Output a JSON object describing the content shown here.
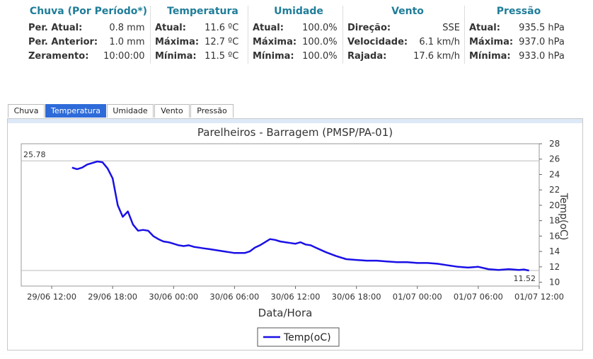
{
  "summary": [
    {
      "title": "Chuva (Por Período*)",
      "rows": [
        [
          "Per. Atual:",
          "0.8 mm"
        ],
        [
          "Per. Anterior:",
          "1.0 mm"
        ],
        [
          "Zeramento:",
          "10:00:00"
        ]
      ]
    },
    {
      "title": "Temperatura",
      "rows": [
        [
          "Atual:",
          "11.6 ºC"
        ],
        [
          "Máxima:",
          "12.7 ºC"
        ],
        [
          "Mínima:",
          "11.5 ºC"
        ]
      ]
    },
    {
      "title": "Umidade",
      "rows": [
        [
          "Atual:",
          "100.0%"
        ],
        [
          "Máxima:",
          "100.0%"
        ],
        [
          "Mínima:",
          "100.0%"
        ]
      ]
    },
    {
      "title": "Vento",
      "rows": [
        [
          "Direção:",
          "SSE"
        ],
        [
          "Velocidade:",
          "6.1 km/h"
        ],
        [
          "Rajada:",
          "17.6 km/h"
        ]
      ]
    },
    {
      "title": "Pressão",
      "rows": [
        [
          "Atual:",
          "935.5 hPa"
        ],
        [
          "Máxima:",
          "937.0 hPa"
        ],
        [
          "Mínima:",
          "933.0 hPa"
        ]
      ]
    }
  ],
  "tabs": [
    {
      "label": "Chuva",
      "active": false
    },
    {
      "label": "Temperatura",
      "active": true
    },
    {
      "label": "Umidade",
      "active": false
    },
    {
      "label": "Vento",
      "active": false
    },
    {
      "label": "Pressão",
      "active": false
    }
  ],
  "chart_data": {
    "type": "line",
    "title": "Parelheiros - Barragem (PMSP/PA-01)",
    "xlabel": "Data/Hora",
    "ylabel": "Temp(oC)",
    "ylim": [
      9.5,
      28
    ],
    "xlim": [
      -5,
      46
    ],
    "yticks": [
      10,
      12,
      14,
      16,
      18,
      20,
      22,
      24,
      26,
      28
    ],
    "xticks": [
      {
        "h": -2,
        "label": "29/06 12:00"
      },
      {
        "h": 4,
        "label": "29/06 18:00"
      },
      {
        "h": 10,
        "label": "30/06 00:00"
      },
      {
        "h": 16,
        "label": "30/06 06:00"
      },
      {
        "h": 22,
        "label": "30/06 12:00"
      },
      {
        "h": 28,
        "label": "30/06 18:00"
      },
      {
        "h": 34,
        "label": "01/07 00:00"
      },
      {
        "h": 40,
        "label": "01/07 06:00"
      },
      {
        "h": 46,
        "label": "01/07 12:00"
      }
    ],
    "max_marker": {
      "value": 25.78,
      "label": "25.78"
    },
    "min_marker": {
      "value": 11.52,
      "label": "11.52"
    },
    "legend_position": "bottom",
    "grid": false,
    "series": [
      {
        "name": "Temp(oC)",
        "color": "#1a10e6",
        "x": [
          0,
          0.5,
          1,
          1.5,
          2,
          2.5,
          3,
          3.5,
          4,
          4.5,
          5,
          5.5,
          6,
          6.5,
          7,
          7.5,
          8,
          8.5,
          9,
          9.5,
          10,
          10.5,
          11,
          11.5,
          12,
          12.5,
          13,
          13.5,
          14,
          14.5,
          15,
          15.5,
          16,
          16.5,
          17,
          17.5,
          18,
          18.5,
          19,
          19.5,
          20,
          20.5,
          21,
          21.5,
          22,
          22.5,
          23,
          23.5,
          24,
          25,
          26,
          27,
          28,
          29,
          30,
          31,
          32,
          33,
          34,
          35,
          36,
          37,
          38,
          39,
          40,
          41,
          42,
          43,
          44,
          44.5,
          45
        ],
        "y": [
          24.9,
          24.7,
          24.9,
          25.3,
          25.5,
          25.7,
          25.6,
          24.8,
          23.5,
          20,
          18.5,
          19.2,
          17.5,
          16.7,
          16.8,
          16.7,
          16,
          15.6,
          15.3,
          15.2,
          15,
          14.8,
          14.7,
          14.8,
          14.6,
          14.5,
          14.4,
          14.3,
          14.2,
          14.1,
          14,
          13.9,
          13.8,
          13.8,
          13.8,
          14,
          14.5,
          14.8,
          15.2,
          15.6,
          15.5,
          15.3,
          15.2,
          15.1,
          15,
          15.2,
          14.9,
          14.8,
          14.5,
          13.9,
          13.4,
          13,
          12.9,
          12.8,
          12.8,
          12.7,
          12.6,
          12.6,
          12.5,
          12.5,
          12.4,
          12.2,
          12,
          11.9,
          12,
          11.7,
          11.6,
          11.7,
          11.6,
          11.65,
          11.52
        ]
      }
    ]
  }
}
